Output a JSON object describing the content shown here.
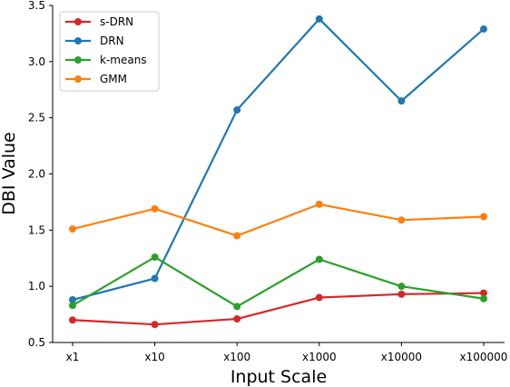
{
  "chart_data": {
    "type": "line",
    "title": "",
    "xlabel": "Input Scale",
    "ylabel": "DBI Value",
    "categories": [
      "x1",
      "x10",
      "x100",
      "x1000",
      "x10000",
      "x100000"
    ],
    "ylim": [
      0.5,
      3.5
    ],
    "yticks": [
      "0.5",
      "1.0",
      "1.5",
      "2.0",
      "2.5",
      "3.0",
      "3.5"
    ],
    "grid": false,
    "legend_position": "top-left",
    "series": [
      {
        "name": "s-DRN",
        "color": "#d62728",
        "values": [
          0.7,
          0.66,
          0.71,
          0.9,
          0.93,
          0.94
        ]
      },
      {
        "name": "DRN",
        "color": "#1f77b4",
        "values": [
          0.88,
          1.07,
          2.57,
          3.38,
          2.65,
          3.29
        ]
      },
      {
        "name": "k-means",
        "color": "#2ca02c",
        "values": [
          0.83,
          1.26,
          0.82,
          1.24,
          1.0,
          0.89
        ]
      },
      {
        "name": "GMM",
        "color": "#ff7f0e",
        "values": [
          1.51,
          1.69,
          1.45,
          1.73,
          1.59,
          1.62
        ]
      }
    ]
  }
}
